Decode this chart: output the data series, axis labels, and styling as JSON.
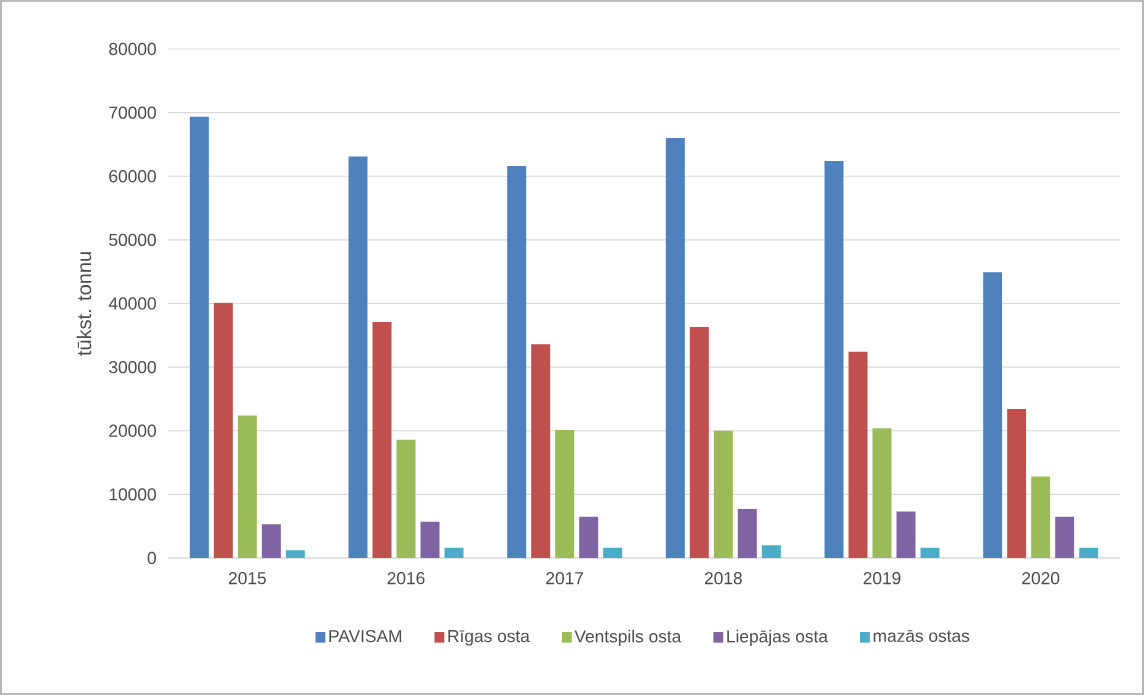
{
  "chart_data": {
    "type": "bar",
    "ylabel": "tūkst. tonnu",
    "categories": [
      "2015",
      "2016",
      "2017",
      "2018",
      "2019",
      "2020"
    ],
    "series": [
      {
        "name": "PAVISAM",
        "color": "#4f81bd",
        "values": [
          69400,
          63100,
          61600,
          66000,
          62400,
          44900
        ]
      },
      {
        "name": "Rīgas osta",
        "color": "#c0504d",
        "values": [
          40100,
          37100,
          33600,
          36300,
          32400,
          23400
        ]
      },
      {
        "name": "Ventspils osta",
        "color": "#9bbb59",
        "values": [
          22400,
          18600,
          20100,
          20000,
          20400,
          12800
        ]
      },
      {
        "name": "Liepājas osta",
        "color": "#8064a2",
        "values": [
          5300,
          5700,
          6500,
          7700,
          7300,
          6500
        ]
      },
      {
        "name": "mazās ostas",
        "color": "#4bacc6",
        "values": [
          1200,
          1600,
          1600,
          2000,
          1600,
          1600
        ]
      }
    ],
    "ylim": [
      0,
      80000
    ],
    "yticks": [
      0,
      10000,
      20000,
      30000,
      40000,
      50000,
      60000,
      70000,
      80000
    ],
    "grid": "y",
    "legend": "bottom"
  }
}
